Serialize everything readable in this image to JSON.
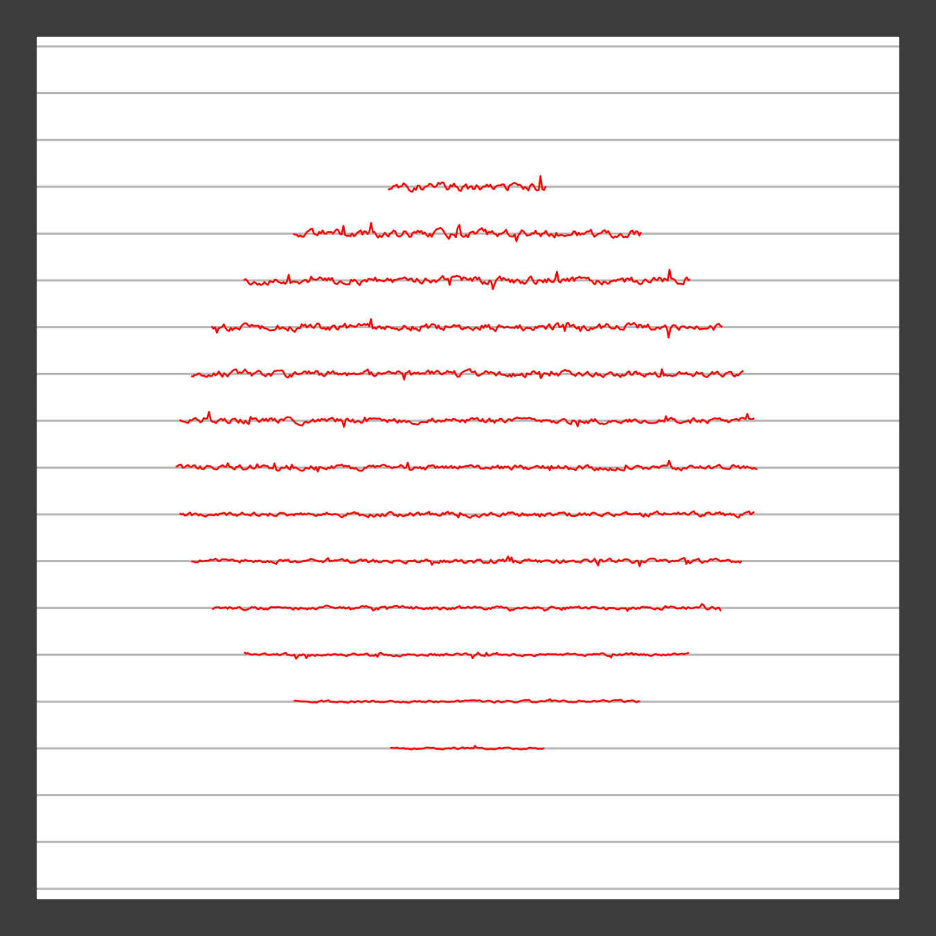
{
  "colors": {
    "frame": "#3c3c3b",
    "background": "#ffffff",
    "guide_lines": "#b3b3b3",
    "waves": "#ff0000"
  },
  "artwork": {
    "guide_line_count": 19,
    "wave_count": 13,
    "shape": "circle"
  }
}
